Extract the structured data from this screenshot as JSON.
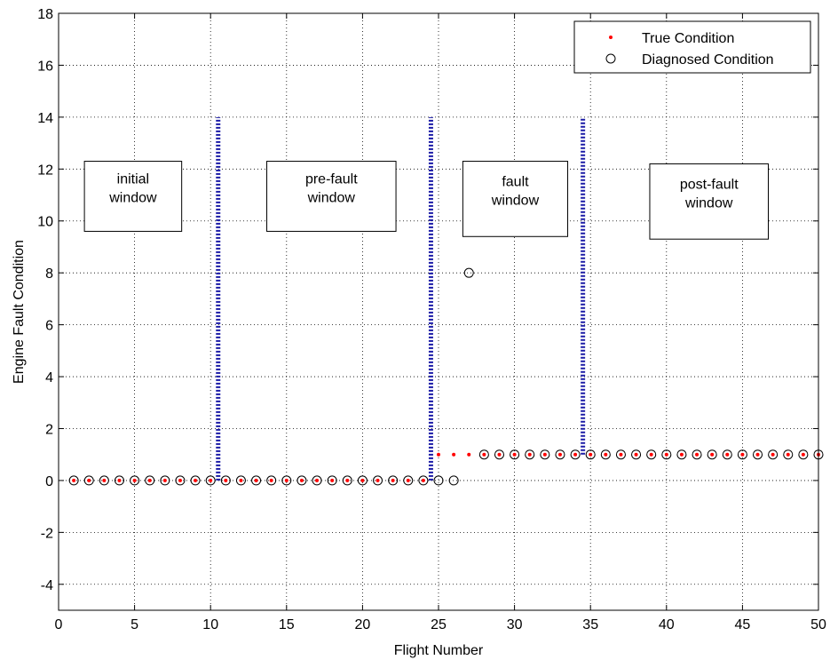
{
  "chart_data": {
    "type": "scatter",
    "xlabel": "Flight Number",
    "ylabel": "Engine Fault Condition",
    "xlim": [
      0,
      50
    ],
    "ylim": [
      -5,
      18
    ],
    "xticks": [
      "0",
      "5",
      "10",
      "15",
      "20",
      "25",
      "30",
      "35",
      "40",
      "45",
      "50"
    ],
    "yticks": [
      "-4",
      "-2",
      "0",
      "2",
      "4",
      "6",
      "8",
      "10",
      "12",
      "14",
      "16",
      "18"
    ],
    "grid": true,
    "legend_position": "top-right",
    "series": [
      {
        "name": "True Condition",
        "marker": "point",
        "color": "#ff0000",
        "x": [
          1,
          2,
          3,
          4,
          5,
          6,
          7,
          8,
          9,
          10,
          11,
          12,
          13,
          14,
          15,
          16,
          17,
          18,
          19,
          20,
          21,
          22,
          23,
          24,
          25,
          26,
          27,
          28,
          29,
          30,
          31,
          32,
          33,
          34,
          35,
          36,
          37,
          38,
          39,
          40,
          41,
          42,
          43,
          44,
          45,
          46,
          47,
          48,
          49,
          50
        ],
        "y": [
          0,
          0,
          0,
          0,
          0,
          0,
          0,
          0,
          0,
          0,
          0,
          0,
          0,
          0,
          0,
          0,
          0,
          0,
          0,
          0,
          0,
          0,
          0,
          0,
          1,
          1,
          1,
          1,
          1,
          1,
          1,
          1,
          1,
          1,
          1,
          1,
          1,
          1,
          1,
          1,
          1,
          1,
          1,
          1,
          1,
          1,
          1,
          1,
          1,
          1
        ]
      },
      {
        "name": "Diagnosed Condition",
        "marker": "circle",
        "color": "#000000",
        "x": [
          1,
          2,
          3,
          4,
          5,
          6,
          7,
          8,
          9,
          10,
          11,
          12,
          13,
          14,
          15,
          16,
          17,
          18,
          19,
          20,
          21,
          22,
          23,
          24,
          25,
          26,
          27,
          28,
          29,
          30,
          31,
          32,
          33,
          34,
          35,
          36,
          37,
          38,
          39,
          40,
          41,
          42,
          43,
          44,
          45,
          46,
          47,
          48,
          49,
          50
        ],
        "y": [
          0,
          0,
          0,
          0,
          0,
          0,
          0,
          0,
          0,
          0,
          0,
          0,
          0,
          0,
          0,
          0,
          0,
          0,
          0,
          0,
          0,
          0,
          0,
          0,
          0,
          0,
          8,
          1,
          1,
          1,
          1,
          1,
          1,
          1,
          1,
          1,
          1,
          1,
          1,
          1,
          1,
          1,
          1,
          1,
          1,
          1,
          1,
          1,
          1,
          1
        ]
      }
    ],
    "window_boundaries": [
      {
        "x": 10.5,
        "y_from": 0,
        "y_to": 14
      },
      {
        "x": 24.5,
        "y_from": 0,
        "y_to": 14
      },
      {
        "x": 34.5,
        "y_from": 1,
        "y_to": 14
      }
    ],
    "boundary_color": "#1a1aa6",
    "annotations": [
      {
        "lines": [
          "initial",
          "window"
        ],
        "x1": 1.7,
        "x2": 8.1,
        "y1": 12.3,
        "y2": 9.6
      },
      {
        "lines": [
          "pre-fault",
          "window"
        ],
        "x1": 13.7,
        "x2": 22.2,
        "y1": 12.3,
        "y2": 9.6
      },
      {
        "lines": [
          "fault",
          "window"
        ],
        "x1": 26.6,
        "x2": 33.5,
        "y1": 12.3,
        "y2": 9.4
      },
      {
        "lines": [
          "post-fault",
          "window"
        ],
        "x1": 38.9,
        "x2": 46.7,
        "y1": 12.2,
        "y2": 9.3
      }
    ]
  }
}
